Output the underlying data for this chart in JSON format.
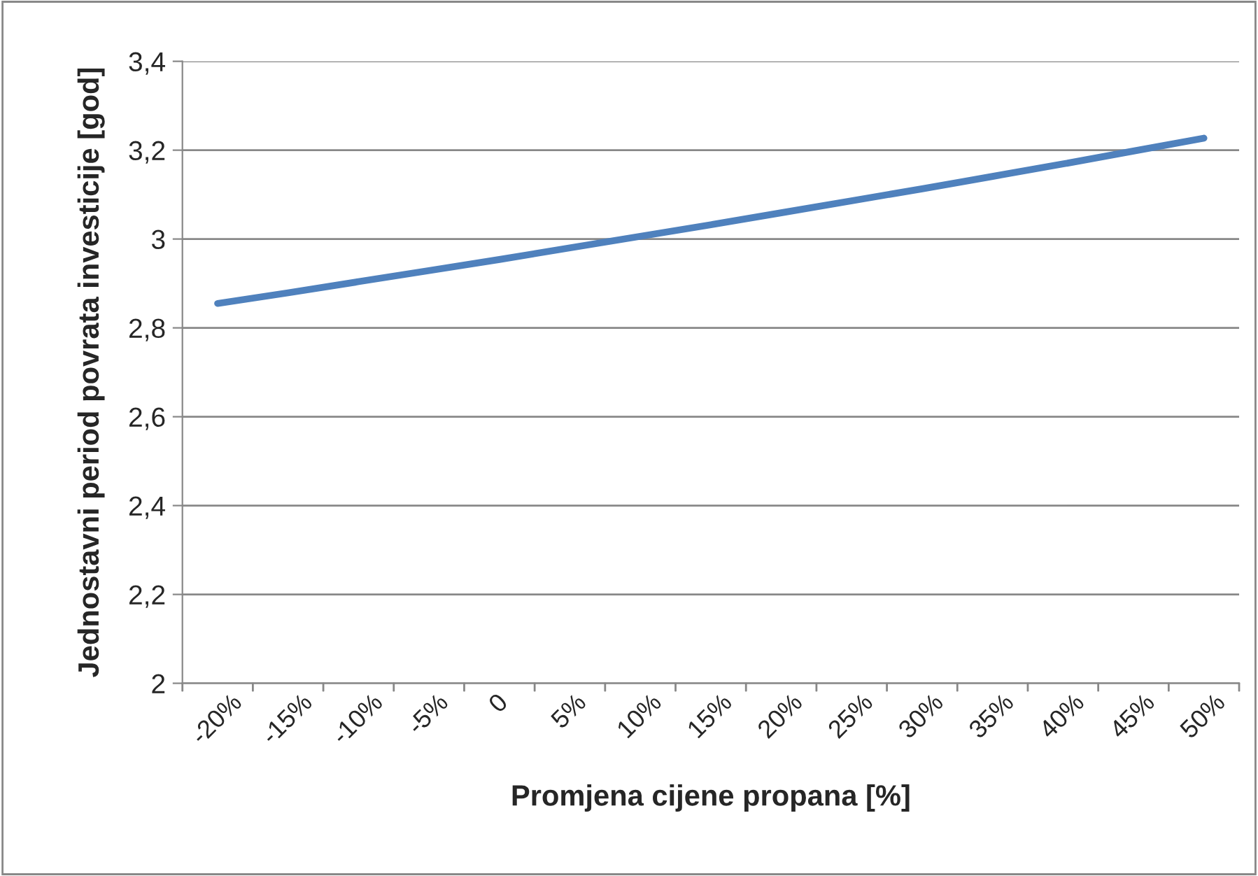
{
  "chart_data": {
    "type": "line",
    "xlabel": "Promjena cijene propana [%]",
    "ylabel": "Jednostavni period povrata investicije [god]",
    "categories": [
      "-20%",
      "-15%",
      "-10%",
      "-5%",
      "0",
      "5%",
      "10%",
      "15%",
      "20%",
      "25%",
      "30%",
      "35%",
      "40%",
      "45%",
      "50%"
    ],
    "series": [
      {
        "color": "#4f81bd",
        "values": [
          2.855,
          2.879,
          2.904,
          2.929,
          2.954,
          2.98,
          3.006,
          3.032,
          3.059,
          3.086,
          3.113,
          3.141,
          3.169,
          3.198,
          3.227
        ]
      }
    ],
    "ylim": [
      2,
      3.4
    ],
    "yticks": [
      2,
      {
        "value": 2.2,
        "label": "2,2"
      },
      {
        "value": 2.4,
        "label": "2,4"
      },
      {
        "value": 2.6,
        "label": "2,6"
      },
      {
        "value": 2.8,
        "label": "2,8"
      },
      3,
      {
        "value": 3.2,
        "label": "3,2"
      },
      {
        "value": 3.4,
        "label": "3,4"
      }
    ],
    "grid": "y",
    "marker": "none",
    "line_style": "solid"
  }
}
